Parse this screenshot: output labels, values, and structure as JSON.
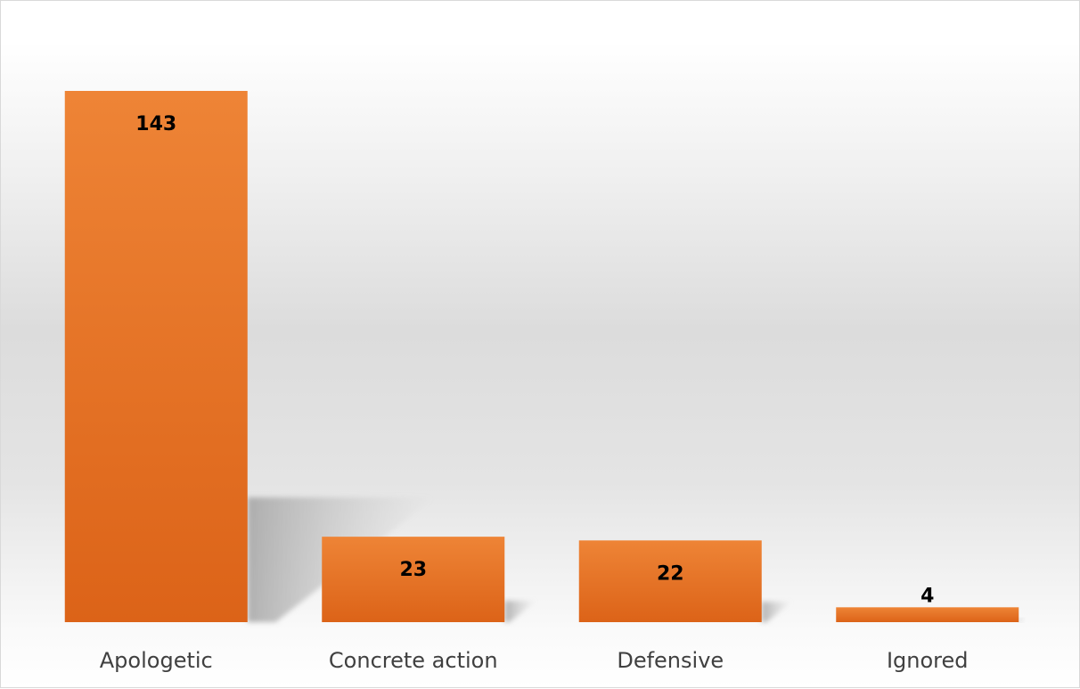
{
  "chart_data": {
    "type": "bar",
    "title": "",
    "xlabel": "",
    "ylabel": "",
    "categories": [
      "Apologetic",
      "Concrete action",
      "Defensive",
      "Ignored"
    ],
    "values": [
      143,
      23,
      22,
      4
    ],
    "data_labels": [
      "143",
      "23",
      "22",
      "4"
    ],
    "ylim": [
      0,
      143
    ],
    "grid": false,
    "legend": "none",
    "bar_color_top": "#ee8436",
    "bar_color_bottom": "#dc6318",
    "label_color": "#000000",
    "category_label_color": "#404040"
  }
}
